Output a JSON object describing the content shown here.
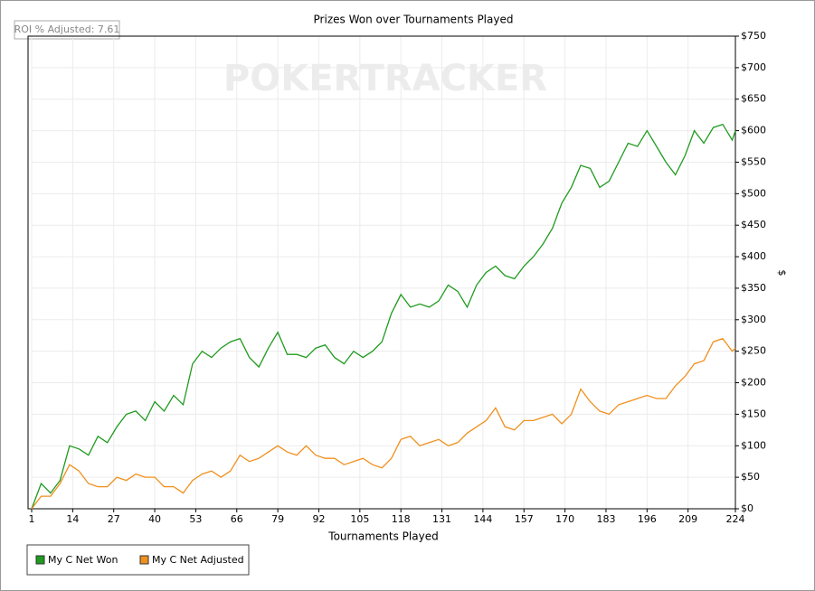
{
  "chart_data": {
    "type": "line",
    "title": "Prizes Won over Tournaments Played",
    "annotation": "ROI % Adjusted: 7.61",
    "watermark": "POKERTRACKER",
    "x_label": "Tournaments Played",
    "y_label": "$",
    "x": [
      1,
      4,
      7,
      10,
      13,
      16,
      19,
      22,
      25,
      28,
      31,
      34,
      37,
      40,
      43,
      46,
      49,
      52,
      55,
      58,
      61,
      64,
      67,
      70,
      73,
      76,
      79,
      82,
      85,
      88,
      91,
      94,
      97,
      100,
      103,
      106,
      109,
      112,
      115,
      118,
      121,
      124,
      127,
      130,
      133,
      136,
      139,
      142,
      145,
      148,
      151,
      154,
      157,
      160,
      163,
      166,
      169,
      172,
      175,
      178,
      181,
      184,
      187,
      190,
      193,
      196,
      199,
      202,
      205,
      208,
      211,
      214,
      217,
      220,
      223,
      224
    ],
    "series": [
      {
        "name": "My C Net Won",
        "color": "#1f9b1f",
        "values": [
          0,
          40,
          25,
          45,
          100,
          95,
          85,
          115,
          105,
          130,
          150,
          155,
          140,
          170,
          155,
          180,
          165,
          230,
          250,
          240,
          255,
          265,
          270,
          240,
          225,
          255,
          280,
          245,
          245,
          240,
          255,
          260,
          240,
          230,
          250,
          240,
          250,
          265,
          310,
          340,
          320,
          325,
          320,
          330,
          355,
          345,
          320,
          355,
          375,
          385,
          370,
          365,
          385,
          400,
          420,
          445,
          485,
          510,
          545,
          540,
          510,
          520,
          550,
          580,
          575,
          600,
          575,
          550,
          530,
          560,
          600,
          580,
          605,
          610,
          585,
          600
        ]
      },
      {
        "name": "My C Net Adjusted",
        "color": "#f0901e",
        "values": [
          0,
          20,
          20,
          40,
          70,
          60,
          40,
          35,
          35,
          50,
          45,
          55,
          50,
          50,
          35,
          35,
          25,
          45,
          55,
          60,
          50,
          60,
          85,
          75,
          80,
          90,
          100,
          90,
          85,
          100,
          85,
          80,
          80,
          70,
          75,
          80,
          70,
          65,
          80,
          110,
          115,
          100,
          105,
          110,
          100,
          105,
          120,
          130,
          140,
          160,
          130,
          125,
          140,
          140,
          145,
          150,
          135,
          150,
          190,
          170,
          155,
          150,
          165,
          170,
          175,
          180,
          175,
          175,
          195,
          210,
          230,
          235,
          265,
          270,
          250,
          255
        ]
      }
    ],
    "xlim": [
      1,
      224
    ],
    "xticks": [
      1,
      14,
      27,
      40,
      53,
      66,
      79,
      92,
      105,
      118,
      131,
      144,
      157,
      170,
      183,
      196,
      209,
      224
    ],
    "ylim": [
      0,
      750
    ],
    "yticks": [
      {
        "value": 0,
        "label": "$0"
      },
      {
        "value": 50,
        "label": "$50"
      },
      {
        "value": 100,
        "label": "$100"
      },
      {
        "value": 150,
        "label": "$150"
      },
      {
        "value": 200,
        "label": "$200"
      },
      {
        "value": 250,
        "label": "$250"
      },
      {
        "value": 300,
        "label": "$300"
      },
      {
        "value": 350,
        "label": "$350"
      },
      {
        "value": 400,
        "label": "$400"
      },
      {
        "value": 450,
        "label": "$450"
      },
      {
        "value": 500,
        "label": "$500"
      },
      {
        "value": 550,
        "label": "$550"
      },
      {
        "value": 600,
        "label": "$600"
      },
      {
        "value": 650,
        "label": "$650"
      },
      {
        "value": 700,
        "label": "$700"
      },
      {
        "value": 750,
        "label": "$750"
      }
    ],
    "grid": true
  }
}
